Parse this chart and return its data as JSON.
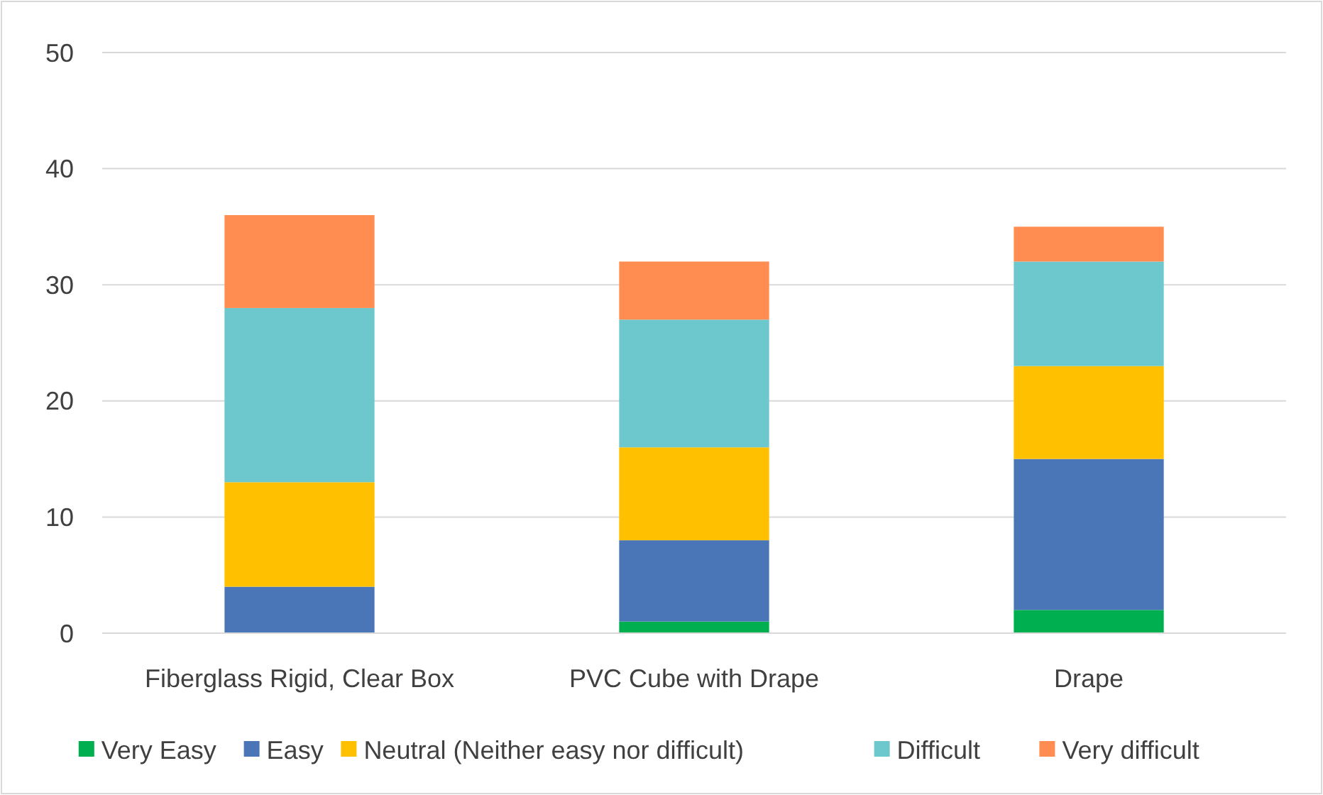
{
  "chart_data": {
    "type": "bar",
    "stacked": true,
    "categories": [
      "Fiberglass Rigid, Clear Box",
      "PVC Cube with Drape",
      "Drape"
    ],
    "series": [
      {
        "name": "Very Easy",
        "color": "#00b050",
        "values": [
          0,
          1,
          2
        ]
      },
      {
        "name": "Easy",
        "color": "#4a76b8",
        "values": [
          4,
          7,
          13
        ]
      },
      {
        "name": "Neutral (Neither easy nor difficult)",
        "color": "#ffc000",
        "values": [
          9,
          8,
          8
        ]
      },
      {
        "name": "Difficult",
        "color": "#6cc8cc",
        "values": [
          15,
          11,
          9
        ]
      },
      {
        "name": "Very difficult",
        "color": "#ff8c50",
        "values": [
          8,
          5,
          3
        ]
      }
    ],
    "ylim": [
      0,
      50
    ],
    "yticks": [
      0,
      10,
      20,
      30,
      40,
      50
    ],
    "grid": "y",
    "legend": "bottom"
  }
}
